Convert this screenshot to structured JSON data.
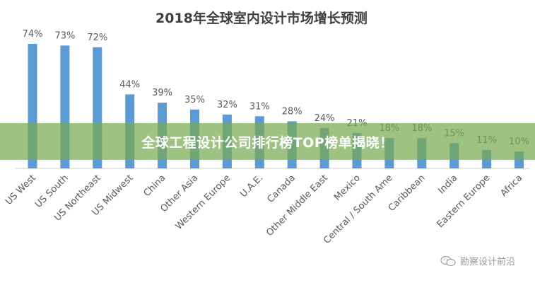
{
  "chart_data": {
    "type": "bar",
    "title": "2018年全球室内设计市场增长预测",
    "categories": [
      "US West",
      "US South",
      "US Northeast",
      "US Midwest",
      "China",
      "Other Asia",
      "Western Europe",
      "U.A.E.",
      "Canada",
      "Other Middle East",
      "Mexico",
      "Central / South Ame",
      "Caribbean",
      "India",
      "Eastern Europe",
      "Africa"
    ],
    "values": [
      74,
      73,
      72,
      44,
      39,
      35,
      32,
      31,
      28,
      24,
      21,
      18,
      18,
      15,
      11,
      10
    ],
    "data_labels": [
      "74%",
      "73%",
      "72%",
      "44%",
      "39%",
      "35%",
      "32%",
      "31%",
      "28%",
      "24%",
      "21%",
      "18%",
      "18%",
      "15%",
      "11%",
      "10%"
    ],
    "unit": "%",
    "ylim": [
      0,
      80
    ],
    "grid": false,
    "bar_color": "#5b9bd5",
    "label_color": "#595959"
  },
  "banner": {
    "text": "全球工程设计公司排行榜TOP榜单揭晓！"
  },
  "watermark": {
    "text": "勘察设计前沿",
    "icon": "wechat-icon"
  }
}
